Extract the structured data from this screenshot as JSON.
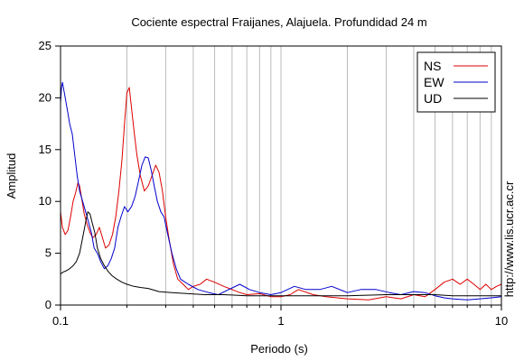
{
  "chart_data": {
    "type": "line",
    "title": "Cociente espectral Fraijanes, Alajuela. Profundidad 24 m",
    "xlabel": "Periodo (s)",
    "ylabel": "Amplitud",
    "x_scale": "log",
    "xlim": [
      0.1,
      10
    ],
    "ylim": [
      0,
      25
    ],
    "x_ticks": [
      0.1,
      1,
      10
    ],
    "x_tick_labels": [
      "0.1",
      "1",
      "10"
    ],
    "y_ticks": [
      0,
      5,
      10,
      15,
      20,
      25
    ],
    "y_tick_labels": [
      "0",
      "5",
      "10",
      "15",
      "20",
      "25"
    ],
    "grid": "vertical",
    "legend_position": "top-right",
    "watermark": "http://www.lis.ucr.ac.cr",
    "series": [
      {
        "name": "NS",
        "color": "#dd0000",
        "points": [
          [
            0.1,
            9.0
          ],
          [
            0.102,
            7.5
          ],
          [
            0.105,
            6.8
          ],
          [
            0.108,
            7.2
          ],
          [
            0.111,
            8.5
          ],
          [
            0.114,
            10.0
          ],
          [
            0.117,
            10.8
          ],
          [
            0.12,
            11.8
          ],
          [
            0.122,
            11.5
          ],
          [
            0.125,
            10.2
          ],
          [
            0.128,
            8.8
          ],
          [
            0.132,
            7.8
          ],
          [
            0.136,
            7.0
          ],
          [
            0.14,
            6.5
          ],
          [
            0.145,
            6.8
          ],
          [
            0.15,
            7.5
          ],
          [
            0.155,
            6.5
          ],
          [
            0.16,
            5.5
          ],
          [
            0.166,
            5.8
          ],
          [
            0.172,
            6.8
          ],
          [
            0.178,
            8.5
          ],
          [
            0.184,
            11.0
          ],
          [
            0.19,
            14.0
          ],
          [
            0.195,
            17.5
          ],
          [
            0.2,
            20.5
          ],
          [
            0.205,
            21.0
          ],
          [
            0.21,
            19.0
          ],
          [
            0.215,
            17.0
          ],
          [
            0.222,
            14.5
          ],
          [
            0.23,
            12.5
          ],
          [
            0.24,
            11.0
          ],
          [
            0.25,
            11.5
          ],
          [
            0.26,
            12.5
          ],
          [
            0.27,
            13.5
          ],
          [
            0.28,
            12.8
          ],
          [
            0.29,
            11.0
          ],
          [
            0.3,
            8.5
          ],
          [
            0.31,
            6.5
          ],
          [
            0.325,
            4.0
          ],
          [
            0.34,
            2.5
          ],
          [
            0.36,
            2.0
          ],
          [
            0.38,
            1.5
          ],
          [
            0.4,
            1.8
          ],
          [
            0.43,
            2.0
          ],
          [
            0.46,
            2.5
          ],
          [
            0.5,
            2.2
          ],
          [
            0.55,
            1.8
          ],
          [
            0.6,
            1.5
          ],
          [
            0.65,
            1.2
          ],
          [
            0.7,
            1.0
          ],
          [
            0.8,
            1.1
          ],
          [
            0.9,
            0.8
          ],
          [
            1.0,
            0.8
          ],
          [
            1.1,
            1.0
          ],
          [
            1.2,
            1.5
          ],
          [
            1.4,
            1.0
          ],
          [
            1.6,
            0.8
          ],
          [
            2.0,
            0.6
          ],
          [
            2.5,
            0.5
          ],
          [
            3.0,
            0.8
          ],
          [
            3.5,
            0.6
          ],
          [
            4.0,
            1.0
          ],
          [
            4.5,
            0.8
          ],
          [
            5.0,
            1.5
          ],
          [
            5.5,
            2.2
          ],
          [
            6.0,
            2.5
          ],
          [
            6.5,
            2.0
          ],
          [
            7.0,
            2.5
          ],
          [
            7.5,
            2.0
          ],
          [
            8.0,
            1.5
          ],
          [
            8.5,
            2.0
          ],
          [
            9.0,
            1.5
          ],
          [
            9.5,
            1.8
          ],
          [
            10.0,
            2.0
          ]
        ]
      },
      {
        "name": "EW",
        "color": "#0000cc",
        "points": [
          [
            0.1,
            19.5
          ],
          [
            0.101,
            21.0
          ],
          [
            0.102,
            21.5
          ],
          [
            0.104,
            20.5
          ],
          [
            0.106,
            19.5
          ],
          [
            0.108,
            18.5
          ],
          [
            0.11,
            17.5
          ],
          [
            0.113,
            16.5
          ],
          [
            0.116,
            14.5
          ],
          [
            0.119,
            12.5
          ],
          [
            0.122,
            11.0
          ],
          [
            0.126,
            10.0
          ],
          [
            0.13,
            9.0
          ],
          [
            0.134,
            8.0
          ],
          [
            0.138,
            7.0
          ],
          [
            0.142,
            5.5
          ],
          [
            0.147,
            5.0
          ],
          [
            0.152,
            4.2
          ],
          [
            0.158,
            3.5
          ],
          [
            0.164,
            3.8
          ],
          [
            0.17,
            4.5
          ],
          [
            0.176,
            5.5
          ],
          [
            0.182,
            7.5
          ],
          [
            0.188,
            8.5
          ],
          [
            0.195,
            9.5
          ],
          [
            0.202,
            9.0
          ],
          [
            0.21,
            9.5
          ],
          [
            0.218,
            10.5
          ],
          [
            0.226,
            12.0
          ],
          [
            0.234,
            13.5
          ],
          [
            0.242,
            14.3
          ],
          [
            0.25,
            14.2
          ],
          [
            0.258,
            13.0
          ],
          [
            0.266,
            11.5
          ],
          [
            0.275,
            10.0
          ],
          [
            0.285,
            9.0
          ],
          [
            0.295,
            8.5
          ],
          [
            0.305,
            7.0
          ],
          [
            0.32,
            5.0
          ],
          [
            0.335,
            3.5
          ],
          [
            0.35,
            2.5
          ],
          [
            0.38,
            2.0
          ],
          [
            0.42,
            1.5
          ],
          [
            0.47,
            1.2
          ],
          [
            0.52,
            1.0
          ],
          [
            0.58,
            1.5
          ],
          [
            0.65,
            2.0
          ],
          [
            0.72,
            1.5
          ],
          [
            0.8,
            1.2
          ],
          [
            0.9,
            1.0
          ],
          [
            1.0,
            1.2
          ],
          [
            1.15,
            1.8
          ],
          [
            1.3,
            1.5
          ],
          [
            1.5,
            1.5
          ],
          [
            1.7,
            1.8
          ],
          [
            2.0,
            1.2
          ],
          [
            2.3,
            1.5
          ],
          [
            2.7,
            1.5
          ],
          [
            3.1,
            1.2
          ],
          [
            3.5,
            1.0
          ],
          [
            4.0,
            1.3
          ],
          [
            4.5,
            1.2
          ],
          [
            5.0,
            0.9
          ],
          [
            5.5,
            0.7
          ],
          [
            6.0,
            0.6
          ],
          [
            7.0,
            0.5
          ],
          [
            8.0,
            0.6
          ],
          [
            9.0,
            0.7
          ],
          [
            10.0,
            0.8
          ]
        ]
      },
      {
        "name": "UD",
        "color": "#000000",
        "points": [
          [
            0.1,
            3.0
          ],
          [
            0.103,
            3.2
          ],
          [
            0.106,
            3.3
          ],
          [
            0.11,
            3.5
          ],
          [
            0.114,
            3.8
          ],
          [
            0.118,
            4.2
          ],
          [
            0.122,
            5.0
          ],
          [
            0.126,
            6.5
          ],
          [
            0.13,
            8.0
          ],
          [
            0.133,
            9.0
          ],
          [
            0.136,
            8.8
          ],
          [
            0.139,
            8.0
          ],
          [
            0.143,
            7.0
          ],
          [
            0.147,
            5.5
          ],
          [
            0.152,
            4.5
          ],
          [
            0.158,
            3.8
          ],
          [
            0.165,
            3.2
          ],
          [
            0.172,
            2.8
          ],
          [
            0.18,
            2.5
          ],
          [
            0.19,
            2.2
          ],
          [
            0.2,
            2.0
          ],
          [
            0.215,
            1.8
          ],
          [
            0.23,
            1.7
          ],
          [
            0.25,
            1.6
          ],
          [
            0.28,
            1.3
          ],
          [
            0.32,
            1.2
          ],
          [
            0.38,
            1.1
          ],
          [
            0.45,
            1.0
          ],
          [
            0.55,
            1.0
          ],
          [
            0.7,
            0.9
          ],
          [
            1.0,
            0.9
          ],
          [
            1.5,
            0.9
          ],
          [
            2.0,
            0.9
          ],
          [
            3.0,
            1.0
          ],
          [
            4.0,
            1.0
          ],
          [
            5.0,
            1.0
          ],
          [
            6.0,
            0.9
          ],
          [
            8.0,
            0.9
          ],
          [
            10.0,
            0.9
          ]
        ]
      }
    ]
  }
}
